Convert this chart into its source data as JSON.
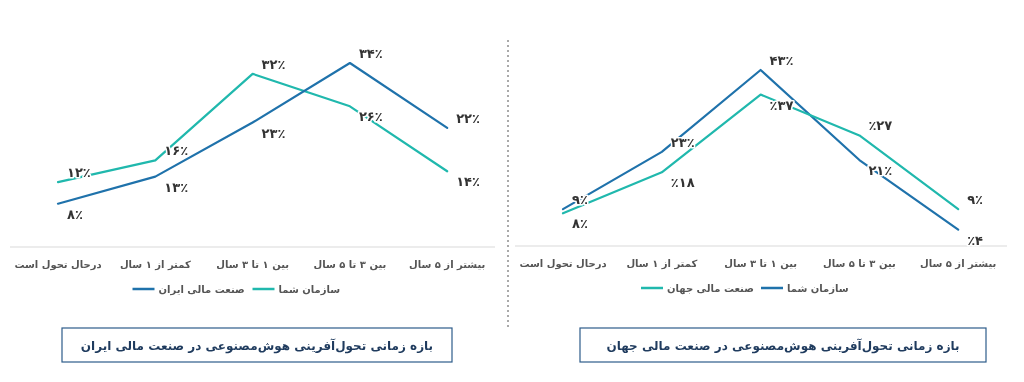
{
  "chart_data": [
    {
      "type": "line",
      "title": "بازه زمانی تحول‌آفرینی هوش‌مصنوعی در صنعت مالی ایران",
      "categories": [
        "درحال تحول است",
        "کمتر از ۱ سال",
        "بین ۱ تا ۳ سال",
        "بین ۳ تا ۵ سال",
        "بیشتر از ۵ سال"
      ],
      "legend": "bottom",
      "marker": "none",
      "series": [
        {
          "name": "سازمان شما",
          "color": "#20b8ad",
          "values": [
            12,
            16,
            32,
            26,
            14
          ],
          "value_labels": [
            "۱۲٪",
            "۱۶٪",
            "۳۲٪",
            "۲۶٪",
            "۱۴٪"
          ]
        },
        {
          "name": "صنعت مالی ایران",
          "color": "#1f72ab",
          "values": [
            8,
            13,
            23,
            34,
            22
          ],
          "value_labels": [
            "۸٪",
            "۱۳٪",
            "۲۳٪",
            "۳۴٪",
            "۲۲٪"
          ]
        }
      ]
    },
    {
      "type": "line",
      "title": "بازه زمانی تحول‌آفرینی هوش‌مصنوعی در صنعت مالی جهان",
      "categories": [
        "درحال تحول است",
        "کمتر از ۱ سال",
        "بین ۱ تا ۳ سال",
        "بین ۳ تا ۵ سال",
        "بیشتر از ۵ سال"
      ],
      "legend": "bottom",
      "marker": "none",
      "series": [
        {
          "name": "سازمان شما",
          "color": "#1f72ab",
          "values": [
            9,
            23,
            43,
            21,
            4
          ],
          "value_labels": [
            "۹٪",
            "۲۳٪",
            "۴۳٪",
            "۲۱٪",
            "٪۴"
          ]
        },
        {
          "name": "صنعت مالی جهان",
          "color": "#20b8ad",
          "values": [
            8,
            18,
            37,
            27,
            9
          ],
          "value_labels": [
            "۸٪",
            "٪۱۸",
            "٪۳۷",
            "٪۲۷",
            "۹٪"
          ]
        }
      ]
    }
  ]
}
